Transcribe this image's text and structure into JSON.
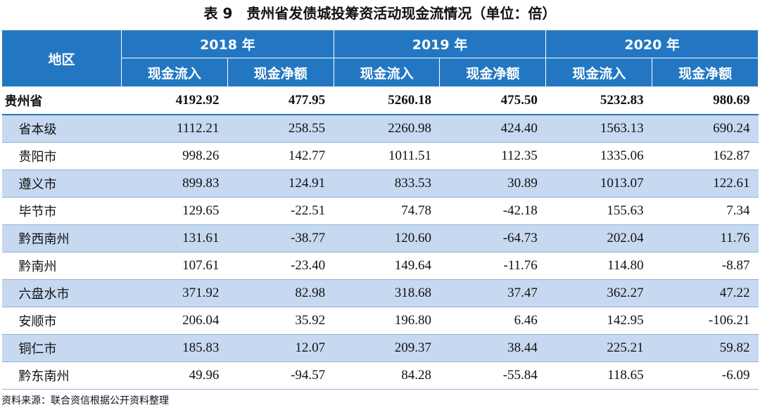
{
  "title": "表 9　贵州省发债城投筹资活动现金流情况（单位：倍）",
  "table": {
    "header": {
      "region": "地区",
      "years": [
        "2018 年",
        "2019 年",
        "2020 年"
      ],
      "columns": [
        "现金流入",
        "现金净额",
        "现金流入",
        "现金净额",
        "现金流入",
        "现金净额"
      ]
    },
    "rows": [
      [
        "贵州省",
        "4192.92",
        "477.95",
        "5260.18",
        "475.50",
        "5232.83",
        "980.69"
      ],
      [
        "省本级",
        "1112.21",
        "258.55",
        "2260.98",
        "424.40",
        "1563.13",
        "690.24"
      ],
      [
        "贵阳市",
        "998.26",
        "142.77",
        "1011.51",
        "112.35",
        "1335.06",
        "162.87"
      ],
      [
        "遵义市",
        "899.83",
        "124.91",
        "833.53",
        "30.89",
        "1013.07",
        "122.61"
      ],
      [
        "毕节市",
        "129.65",
        "-22.51",
        "74.78",
        "-42.18",
        "155.63",
        "7.34"
      ],
      [
        "黔西南州",
        "131.61",
        "-38.77",
        "120.60",
        "-64.73",
        "202.04",
        "11.76"
      ],
      [
        "黔南州",
        "107.61",
        "-23.40",
        "149.64",
        "-11.76",
        "114.80",
        "-8.87"
      ],
      [
        "六盘水市",
        "371.92",
        "82.98",
        "318.68",
        "37.47",
        "362.27",
        "47.22"
      ],
      [
        "安顺市",
        "206.04",
        "35.92",
        "196.80",
        "6.46",
        "142.95",
        "-106.21"
      ],
      [
        "铜仁市",
        "185.83",
        "12.07",
        "209.37",
        "38.44",
        "225.21",
        "59.82"
      ],
      [
        "黔东南州",
        "49.96",
        "-94.57",
        "84.28",
        "-55.84",
        "118.65",
        "-6.09"
      ]
    ]
  },
  "source": "资料来源：联合资信根据公开资料整理"
}
